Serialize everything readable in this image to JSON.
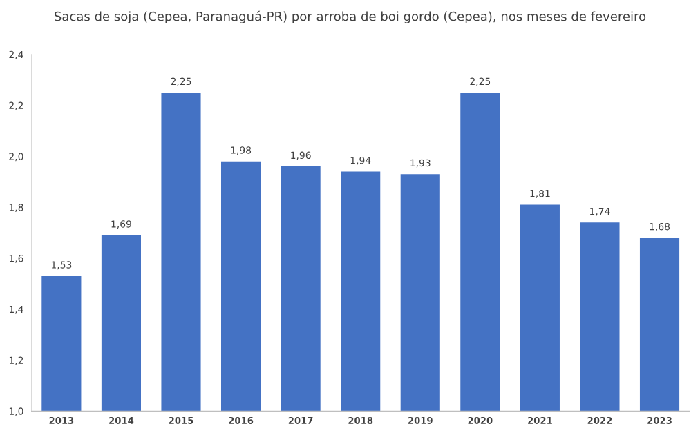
{
  "chart_data": {
    "type": "bar",
    "title": "Sacas de soja (Cepea, Paranaguá-PR) por arroba de boi gordo (Cepea), nos meses de fevereiro",
    "categories": [
      "2013",
      "2014",
      "2015",
      "2016",
      "2017",
      "2018",
      "2019",
      "2020",
      "2021",
      "2022",
      "2023"
    ],
    "values": [
      1.53,
      1.69,
      2.25,
      1.98,
      1.96,
      1.94,
      1.93,
      2.25,
      1.81,
      1.74,
      1.68
    ],
    "value_labels": [
      "1,53",
      "1,69",
      "2,25",
      "1,98",
      "1,96",
      "1,94",
      "1,93",
      "2,25",
      "1,81",
      "1,74",
      "1,68"
    ],
    "color": "#4472c4",
    "ylim": [
      1.0,
      2.4
    ],
    "yticks": [
      {
        "value": 1.0,
        "label": "1,0"
      },
      {
        "value": 1.2,
        "label": "1,2"
      },
      {
        "value": 1.4,
        "label": "1,4"
      },
      {
        "value": 1.6,
        "label": "1,6"
      },
      {
        "value": 1.8,
        "label": "1,8"
      },
      {
        "value": 2.0,
        "label": "2,0"
      },
      {
        "value": 2.2,
        "label": "2,2"
      },
      {
        "value": 2.4,
        "label": "2,4"
      }
    ],
    "grid": false,
    "legend": false
  }
}
